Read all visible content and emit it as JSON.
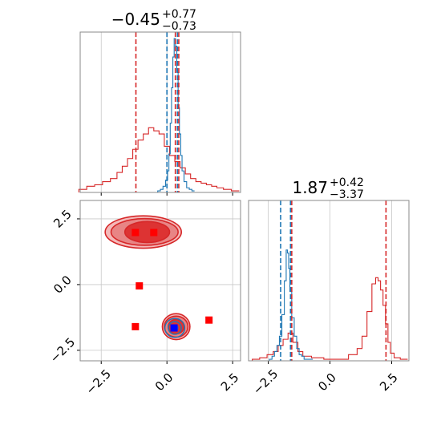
{
  "colors": {
    "red": "#d62728",
    "blue": "#1f77b4",
    "marker_red": "#ff0000",
    "marker_blue": "#0000ff",
    "grid": "#c8c8c8",
    "frame": "#888888",
    "fill_light": "#f4b9b9",
    "fill_mid": "#e88585",
    "fill_dark": "#dd3333"
  },
  "chart_data": [
    {
      "type": "histogram",
      "panel": "marginal-x",
      "title": {
        "median": "−0.45",
        "upper": "+0.77",
        "lower": "−0.73"
      },
      "xlim": [
        -3.3,
        2.8
      ],
      "x_ticks": [
        -2.5,
        0.0,
        2.5
      ],
      "grid": true,
      "vlines": [
        {
          "x": -1.18,
          "color": "red"
        },
        {
          "x": 0.32,
          "color": "red"
        },
        {
          "x": 0.45,
          "color": "red"
        },
        {
          "x": 0.0,
          "color": "blue"
        },
        {
          "x": 0.4,
          "color": "blue"
        }
      ],
      "series": [
        {
          "color": "red",
          "x": [
            -3.2,
            -2.9,
            -2.6,
            -2.3,
            -2.0,
            -1.8,
            -1.6,
            -1.4,
            -1.2,
            -1.0,
            -0.8,
            -0.6,
            -0.4,
            -0.2,
            0.0,
            0.2,
            0.4,
            0.6,
            0.8,
            1.0,
            1.2,
            1.4,
            1.6,
            1.8,
            2.0,
            2.3,
            2.6
          ],
          "y": [
            0.02,
            0.04,
            0.05,
            0.07,
            0.09,
            0.13,
            0.17,
            0.22,
            0.28,
            0.34,
            0.38,
            0.42,
            0.4,
            0.38,
            0.3,
            0.24,
            0.2,
            0.16,
            0.12,
            0.09,
            0.07,
            0.06,
            0.05,
            0.04,
            0.03,
            0.02,
            0.01
          ]
        },
        {
          "color": "blue",
          "x": [
            -0.3,
            -0.2,
            -0.1,
            0.0,
            0.05,
            0.1,
            0.15,
            0.2,
            0.25,
            0.3,
            0.35,
            0.4,
            0.45,
            0.5,
            0.55,
            0.6,
            0.7,
            0.8,
            0.9,
            1.0
          ],
          "y": [
            0.01,
            0.02,
            0.04,
            0.08,
            0.14,
            0.25,
            0.45,
            0.68,
            0.88,
            1.0,
            0.95,
            0.78,
            0.55,
            0.38,
            0.24,
            0.14,
            0.07,
            0.03,
            0.02,
            0.01
          ]
        }
      ]
    },
    {
      "type": "histogram",
      "panel": "marginal-y",
      "title": {
        "median": "1.87",
        "upper": "+0.42",
        "lower": "−3.37"
      },
      "xlim": [
        -3.3,
        3.2
      ],
      "x_ticks": [
        -2.5,
        0.0,
        2.5
      ],
      "grid": true,
      "vlines": [
        {
          "x": -1.55,
          "color": "red"
        },
        {
          "x": 2.27,
          "color": "red"
        },
        {
          "x": -2.0,
          "color": "blue"
        },
        {
          "x": -1.6,
          "color": "blue"
        }
      ],
      "series": [
        {
          "color": "red",
          "x": [
            -3.0,
            -2.7,
            -2.4,
            -2.2,
            -2.0,
            -1.8,
            -1.6,
            -1.4,
            -1.2,
            -1.0,
            -0.5,
            0.0,
            0.5,
            1.0,
            1.2,
            1.4,
            1.6,
            1.8,
            1.9,
            2.0,
            2.1,
            2.2,
            2.3,
            2.4,
            2.5,
            2.7,
            3.0
          ],
          "y": [
            0.01,
            0.02,
            0.04,
            0.06,
            0.1,
            0.14,
            0.18,
            0.12,
            0.06,
            0.03,
            0.02,
            0.01,
            0.01,
            0.04,
            0.08,
            0.16,
            0.32,
            0.5,
            0.54,
            0.52,
            0.46,
            0.36,
            0.24,
            0.12,
            0.05,
            0.02,
            0.01
          ]
        },
        {
          "color": "blue",
          "x": [
            -2.4,
            -2.3,
            -2.2,
            -2.1,
            -2.0,
            -1.9,
            -1.8,
            -1.75,
            -1.7,
            -1.65,
            -1.6,
            -1.5,
            -1.4,
            -1.3,
            -1.2,
            -1.1,
            -1.0,
            -0.8
          ],
          "y": [
            0.01,
            0.03,
            0.06,
            0.1,
            0.16,
            0.3,
            0.52,
            0.72,
            0.7,
            0.6,
            0.45,
            0.28,
            0.16,
            0.08,
            0.04,
            0.03,
            0.01,
            0.01
          ]
        }
      ]
    },
    {
      "type": "scatter",
      "panel": "joint",
      "xlim": [
        -3.3,
        2.8
      ],
      "ylim": [
        -2.9,
        3.2
      ],
      "x_ticks": [
        -2.5,
        0.0,
        2.5
      ],
      "y_ticks": [
        -2.5,
        0.0,
        2.5
      ],
      "grid": true,
      "red_contours": [
        {
          "cx": -0.9,
          "cy": 2.0,
          "rx": 2.9,
          "ry": 0.85,
          "level": "outer"
        },
        {
          "cx": -0.85,
          "cy": 2.0,
          "rx": 2.55,
          "ry": 0.7,
          "level": "middle"
        },
        {
          "cx": -0.75,
          "cy": 2.0,
          "rx": 1.7,
          "ry": 0.55,
          "level": "inner"
        },
        {
          "cx": 0.35,
          "cy": -1.6,
          "rx": 1.05,
          "ry": 0.68,
          "level": "outer"
        },
        {
          "cx": 0.35,
          "cy": -1.6,
          "rx": 0.9,
          "ry": 0.55,
          "level": "middle"
        },
        {
          "cx": 0.35,
          "cy": -1.6,
          "rx": 0.6,
          "ry": 0.38,
          "level": "inner"
        }
      ],
      "blue_contours": [
        {
          "cx": 0.3,
          "cy": -1.65,
          "rx": 0.58,
          "ry": 0.45
        },
        {
          "cx": 0.3,
          "cy": -1.65,
          "rx": 0.38,
          "ry": 0.3
        },
        {
          "cx": 0.3,
          "cy": -1.65,
          "rx": 0.18,
          "ry": 0.14
        }
      ],
      "red_markers": [
        {
          "x": -1.2,
          "y": 1.98
        },
        {
          "x": -0.5,
          "y": 1.98
        },
        {
          "x": -1.05,
          "y": -0.05
        },
        {
          "x": -1.2,
          "y": -1.6
        },
        {
          "x": 1.6,
          "y": -1.35
        }
      ],
      "blue_markers": [
        {
          "x": 0.27,
          "y": -1.65
        }
      ]
    }
  ]
}
